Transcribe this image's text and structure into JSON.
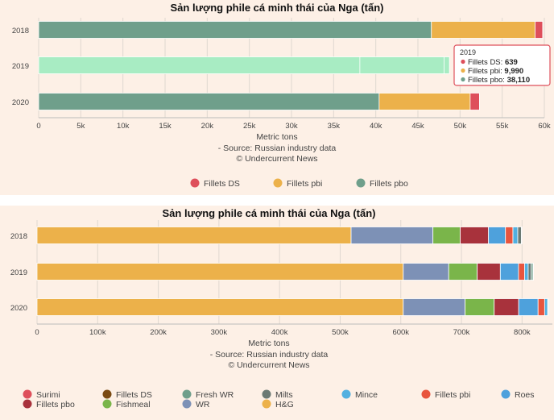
{
  "charts": [
    {
      "chart_data": {
        "type": "bar",
        "orientation": "horizontal",
        "stacked": true,
        "title": "Sản lượng phile cá minh thái của Nga (tấn)",
        "xlabel": "Metric tons",
        "source": "- Source: Russian industry data",
        "copyright": "© Undercurrent News",
        "categories": [
          "2018",
          "2019",
          "2020"
        ],
        "xlim": [
          0,
          60000
        ],
        "xticks": [
          0,
          5000,
          10000,
          15000,
          20000,
          25000,
          30000,
          35000,
          40000,
          45000,
          50000,
          55000,
          60000
        ],
        "xtick_labels": [
          "0",
          "5k",
          "10k",
          "15k",
          "20k",
          "25k",
          "30k",
          "35k",
          "40k",
          "45k",
          "50k",
          "55k",
          "60k"
        ],
        "series": [
          {
            "name": "Fillets pbo",
            "color": "#6f9f8b",
            "values": [
              46600,
              38110,
              40400
            ]
          },
          {
            "name": "Fillets pbi",
            "color": "#ecb14a",
            "values": [
              12300,
              9990,
              10800
            ]
          },
          {
            "name": "Fillets DS",
            "color": "#de4f5b",
            "values": [
              900,
              639,
              1100
            ]
          }
        ],
        "legend_order": [
          "Fillets DS",
          "Fillets pbi",
          "Fillets pbo"
        ],
        "legend_placement": "bottom",
        "highlighted_category": "2019",
        "highlight_color": "#a8ecc3",
        "tooltip": {
          "header": "2019",
          "rows": [
            {
              "label": "Fillets DS: ",
              "value": "639",
              "color": "#de4f5b"
            },
            {
              "label": "Fillets pbi: ",
              "value": "9,990",
              "color": "#ecb14a"
            },
            {
              "label": "Fillets pbo: ",
              "value": "38,110",
              "color": "#6f9f8b"
            }
          ]
        }
      }
    },
    {
      "chart_data": {
        "type": "bar",
        "orientation": "horizontal",
        "stacked": true,
        "title": "Sản lượng phile cá minh thái của Nga (tấn)",
        "xlabel": "Metric tons",
        "source": "- Source: Russian industry data",
        "copyright": "© Undercurrent News",
        "categories": [
          "2018",
          "2019",
          "2020"
        ],
        "xlim": [
          0,
          850000
        ],
        "xticks": [
          0,
          100000,
          200000,
          300000,
          400000,
          500000,
          600000,
          700000,
          800000
        ],
        "xtick_labels": [
          "0",
          "100k",
          "200k",
          "300k",
          "400k",
          "500k",
          "600k",
          "700k",
          "800k"
        ],
        "series": [
          {
            "name": "H&G",
            "color": "#ecb14a",
            "values": [
              518000,
              604000,
              604000
            ]
          },
          {
            "name": "WR",
            "color": "#7d91b6",
            "values": [
              135000,
              75000,
              102000
            ]
          },
          {
            "name": "Fishmeal",
            "color": "#7ab54a",
            "values": [
              45000,
              47000,
              48000
            ]
          },
          {
            "name": "Fillets pbo",
            "color": "#a8323c",
            "values": [
              46600,
              38110,
              40400
            ]
          },
          {
            "name": "Roes",
            "color": "#4ea1dc",
            "values": [
              28000,
              30000,
              32000
            ]
          },
          {
            "name": "Fillets pbi",
            "color": "#e8553e",
            "values": [
              12300,
              9990,
              10800
            ]
          },
          {
            "name": "Mince",
            "color": "#52b0e0",
            "values": [
              8000,
              6000,
              5000
            ]
          },
          {
            "name": "Milts",
            "color": "#6b7a74",
            "values": [
              6000,
              5000,
              0
            ]
          },
          {
            "name": "Fresh WR",
            "color": "#6f9f8b",
            "values": [
              0,
              3000,
              0
            ]
          },
          {
            "name": "Fillets DS",
            "color": "#7a4a12",
            "values": [
              900,
              639,
              1100
            ]
          },
          {
            "name": "Surimi",
            "color": "#de4f5b",
            "values": [
              0,
              0,
              0
            ]
          }
        ],
        "legend_order": [
          "Surimi",
          "Fillets DS",
          "Fresh WR",
          "Milts",
          "Mince",
          "Fillets pbi",
          "Roes",
          "Fillets pbo",
          "Fishmeal",
          "WR",
          "H&G"
        ],
        "legend_placement": "bottom"
      }
    }
  ]
}
